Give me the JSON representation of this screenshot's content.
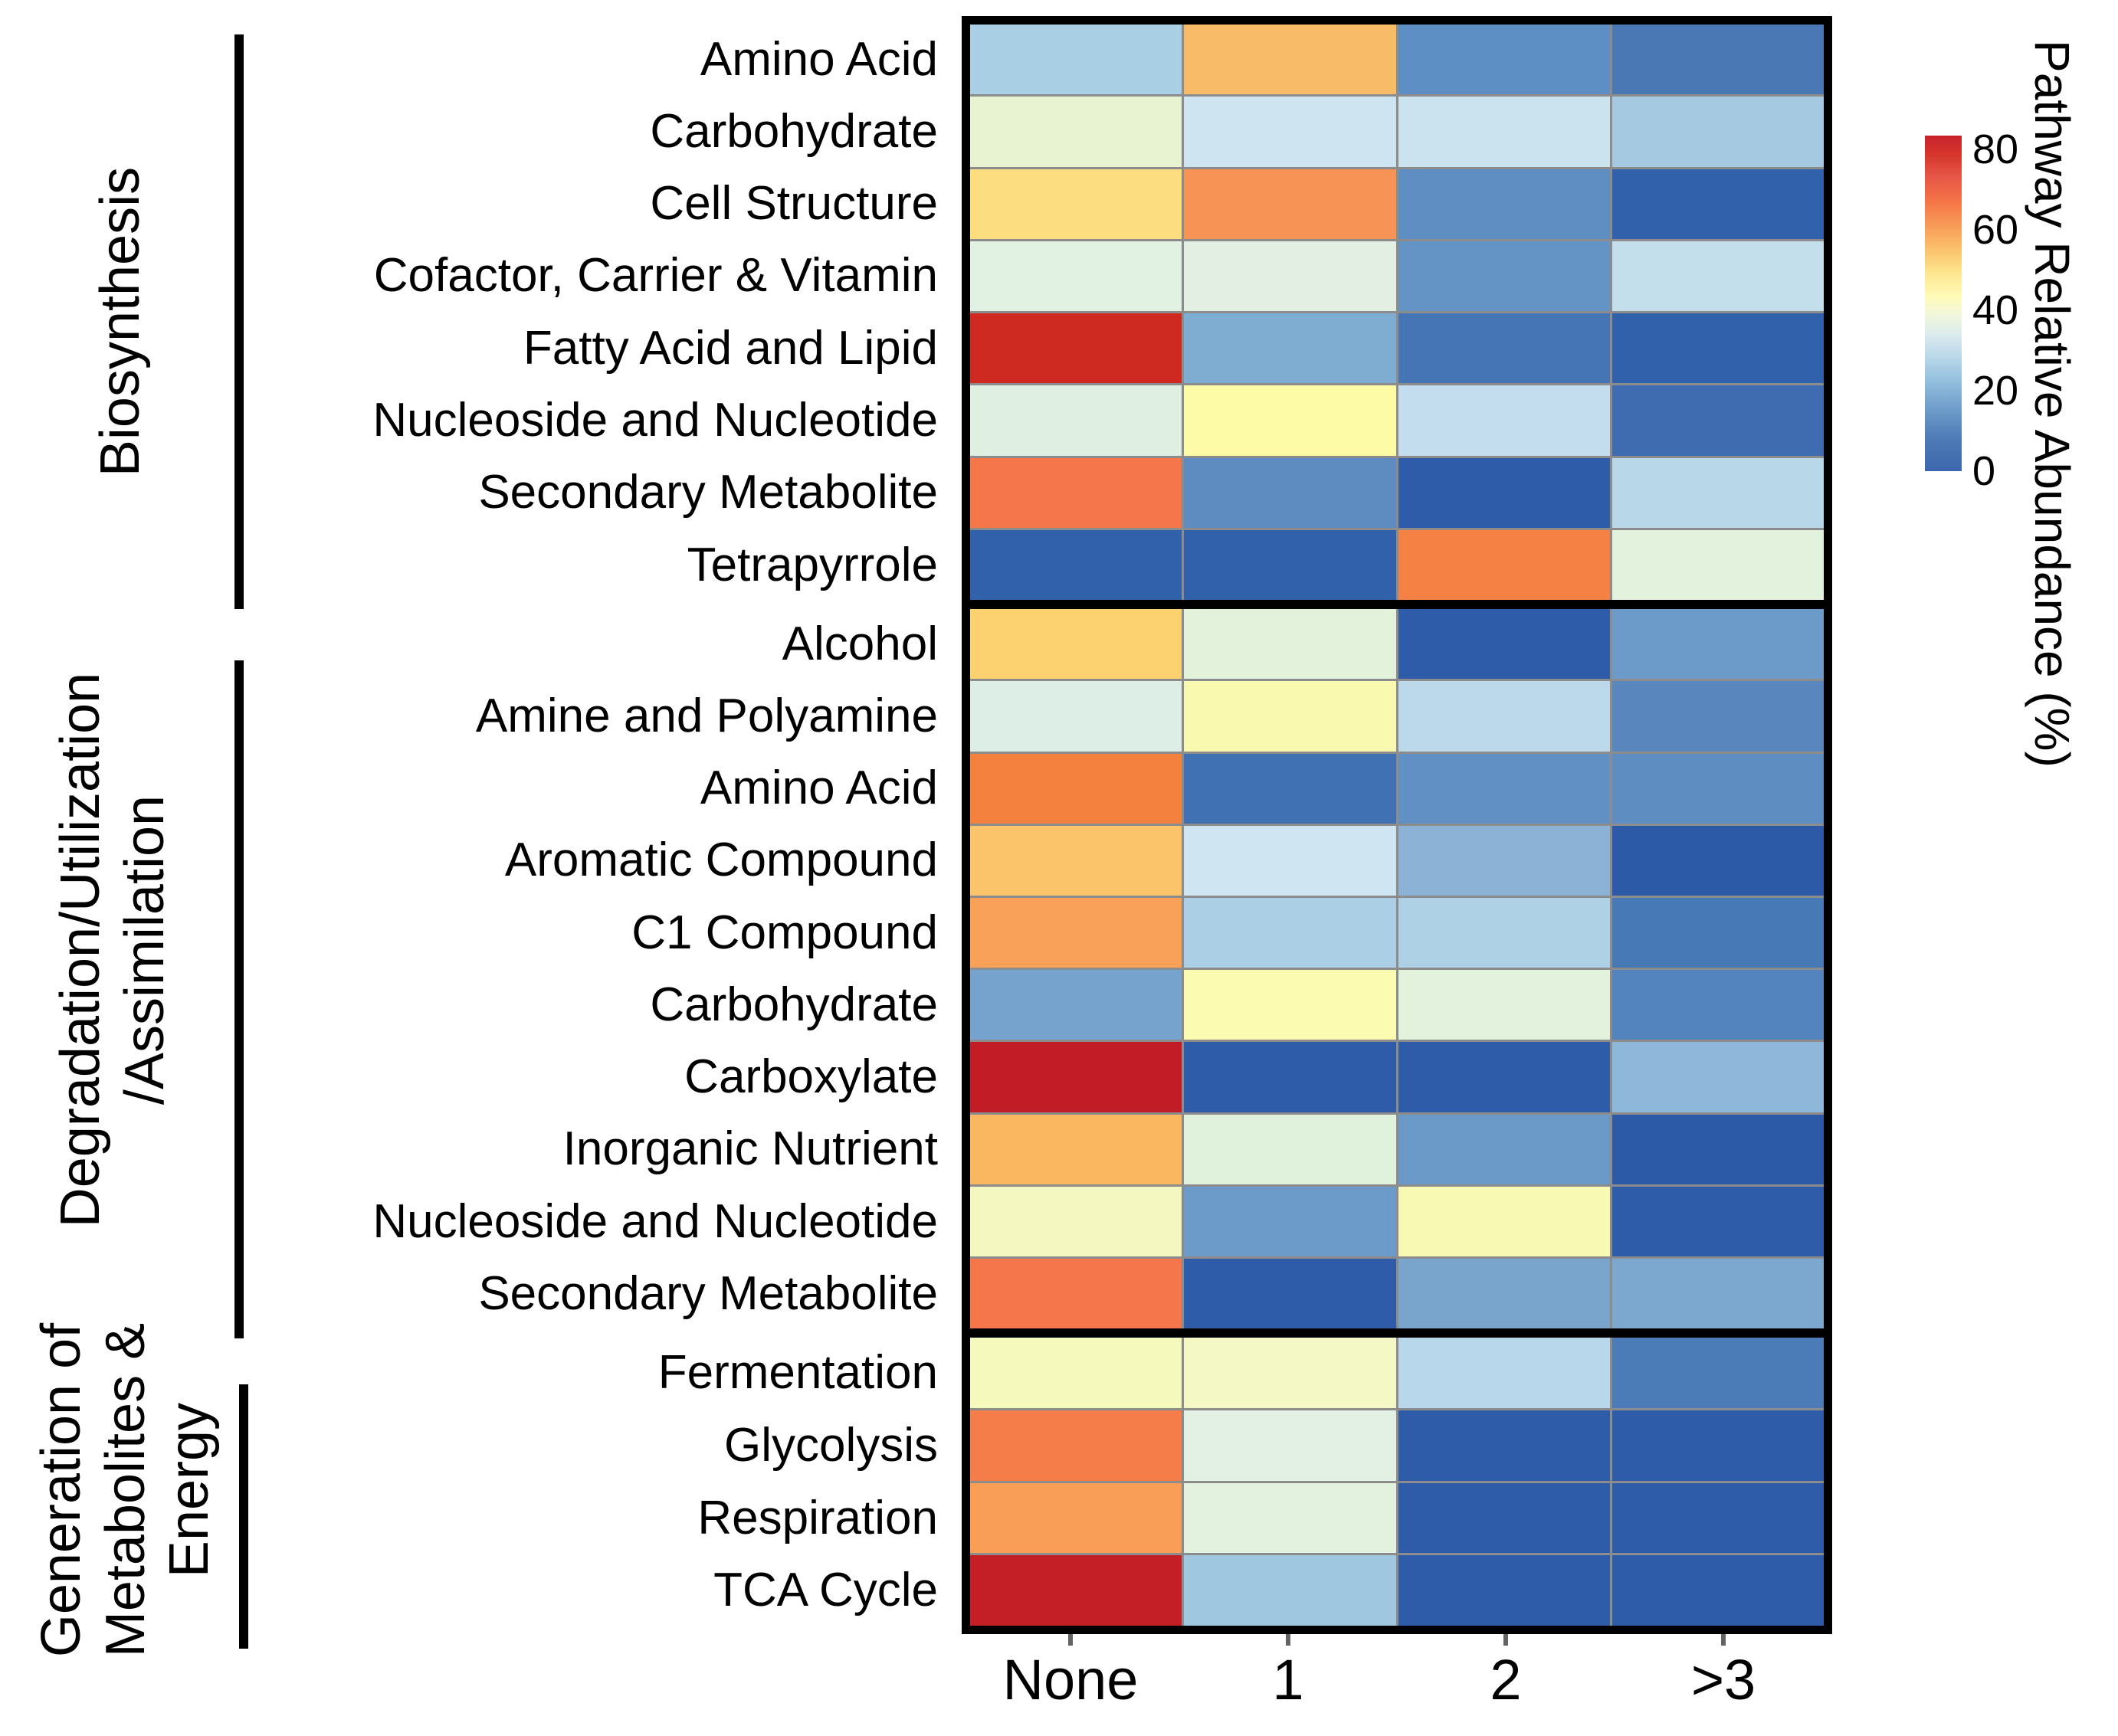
{
  "chart_data": {
    "type": "heatmap",
    "title": "",
    "columns": [
      "None",
      "1",
      "2",
      ">3"
    ],
    "colorbar": {
      "title": "Pathway Relative Abundance (%)",
      "tick_labels": [
        "80",
        "60",
        "40",
        "20",
        "0"
      ],
      "min": 0,
      "max": 80,
      "colormap": "RdYlBu reversed (blue low, red high)",
      "gradient_stops": [
        "#c7222a 0%",
        "#d7382d 6%",
        "#e85948 13%",
        "#f57647 20%",
        "#f89c58 27%",
        "#fbc26c 34%",
        "#fde68f 41%",
        "#fefbb8 48%",
        "#f0f6de 54%",
        "#d8e9ef 60%",
        "#b4d5e8 67%",
        "#8fbcdc 74%",
        "#6c9bc8 82%",
        "#4f7cb7 90%",
        "#3c67ae 100%"
      ]
    },
    "groups": [
      {
        "label": "Biosynthesis",
        "label_lines": [
          "Biosynthesis"
        ],
        "rows": [
          {
            "label": "Amino Acid",
            "values": [
              22,
              57,
              11,
              8
            ],
            "colors": [
              "#a9cfe5",
              "#f8bc68",
              "#5d8fc4",
              "#4a78b5"
            ]
          },
          {
            "label": "Carbohydrate",
            "values": [
              36,
              26,
              25,
              21
            ],
            "colors": [
              "#e7f3d1",
              "#cee4f0",
              "#cbe2ef",
              "#a4c9e1"
            ]
          },
          {
            "label": "Cell Structure",
            "values": [
              50,
              61,
              11,
              4
            ],
            "colors": [
              "#fcdd7f",
              "#f79455",
              "#5f8ec3",
              "#3261ab"
            ]
          },
          {
            "label": "Cofactor, Carrier & Vitamin",
            "values": [
              32,
              32,
              12,
              24
            ],
            "colors": [
              "#e1f1e2",
              "#e2efe2",
              "#6494c5",
              "#c4dfec"
            ]
          },
          {
            "label": "Fatty Acid and Lipid",
            "values": [
              79,
              17,
              8,
              4
            ],
            "colors": [
              "#cf2a22",
              "#7fadd2",
              "#4575b4",
              "#3261ab"
            ]
          },
          {
            "label": "Nucleoside and Nucleotide",
            "values": [
              33,
              43,
              24,
              6
            ],
            "colors": [
              "#dff0e2",
              "#fdfba5",
              "#c3ddee",
              "#3f6cb0"
            ]
          },
          {
            "label": "Secondary Metabolite",
            "values": [
              67,
              11,
              3,
              23
            ],
            "colors": [
              "#f5764a",
              "#5e8cc1",
              "#2e5ca9",
              "#b8d8ea"
            ]
          },
          {
            "label": "Tetrapyrrole",
            "values": [
              3,
              4,
              65,
              33
            ],
            "colors": [
              "#3161aa",
              "#3261ab",
              "#f58244",
              "#e3f2dc"
            ]
          }
        ]
      },
      {
        "label": "Degradation/Utilization/Assimilation",
        "label_lines": [
          "Degradation/Utilization",
          "/Assimilation"
        ],
        "rows": [
          {
            "label": "Alcohol",
            "values": [
              52,
              33,
              2,
              14
            ],
            "colors": [
              "#fbd26f",
              "#e3f2da",
              "#2f5ca9",
              "#6d9bc9"
            ]
          },
          {
            "label": "Amine and Polyamine",
            "values": [
              30,
              41,
              23,
              10
            ],
            "colors": [
              "#ddeee6",
              "#f9f9b0",
              "#bcd9eb",
              "#5886bd"
            ]
          },
          {
            "label": "Amino Acid",
            "values": [
              65,
              7,
              12,
              11
            ],
            "colors": [
              "#f5813f",
              "#4071b2",
              "#6090c4",
              "#5e8dc2"
            ]
          },
          {
            "label": "Aromatic Compound",
            "values": [
              55,
              26,
              18,
              4
            ],
            "colors": [
              "#fcc46a",
              "#cfe5f1",
              "#8cb3d6",
              "#2d5aa7"
            ]
          },
          {
            "label": "C1 Compound",
            "values": [
              60,
              22,
              21,
              8
            ],
            "colors": [
              "#f9a159",
              "#abcfe5",
              "#aed1e6",
              "#4679b5"
            ]
          },
          {
            "label": "Carbohydrate",
            "values": [
              15,
              42,
              33,
              10
            ],
            "colors": [
              "#76a3cd",
              "#fbfbb1",
              "#e3f2dc",
              "#5484bd"
            ]
          },
          {
            "label": "Carboxylate",
            "values": [
              82,
              2,
              2,
              18
            ],
            "colors": [
              "#c21d26",
              "#2f5ca9",
              "#2f5ca9",
              "#8fb7d9"
            ]
          },
          {
            "label": "Inorganic Nutrient",
            "values": [
              57,
              32,
              13,
              4
            ],
            "colors": [
              "#fbb660",
              "#e0f1dc",
              "#6c9ac8",
              "#2d5aa7"
            ]
          },
          {
            "label": "Nucleoside and Nucleotide",
            "values": [
              40,
              14,
              41,
              3
            ],
            "colors": [
              "#f4f8c0",
              "#6d9bc9",
              "#f8fab3",
              "#2f5ca9"
            ]
          },
          {
            "label": "Secondary Metabolite",
            "values": [
              67,
              2,
              16,
              17
            ],
            "colors": [
              "#f5764a",
              "#2f5ca9",
              "#79a5cd",
              "#7ca8cf"
            ]
          }
        ]
      },
      {
        "label": "Generation of Metabolites & Energy",
        "label_lines": [
          "Generation of",
          "Metabolites &",
          "Energy"
        ],
        "rows": [
          {
            "label": "Fermentation",
            "values": [
              39,
              40,
              23,
              9
            ],
            "colors": [
              "#f6f9bc",
              "#f4f8c4",
              "#b8d7ea",
              "#4c7cb7"
            ]
          },
          {
            "label": "Glycolysis",
            "values": [
              64,
              31,
              3,
              3
            ],
            "colors": [
              "#f57d49",
              "#e2f1e3",
              "#2e5ca9",
              "#2e5ca9"
            ]
          },
          {
            "label": "Respiration",
            "values": [
              60,
              33,
              3,
              3
            ],
            "colors": [
              "#f99e57",
              "#e2f2de",
              "#2e5ca9",
              "#2e5ca9"
            ]
          },
          {
            "label": "TCA Cycle",
            "values": [
              83,
              20,
              3,
              3
            ],
            "colors": [
              "#c41e27",
              "#9fc8e0",
              "#2e5ca9",
              "#2e5ca9"
            ]
          }
        ]
      }
    ]
  }
}
